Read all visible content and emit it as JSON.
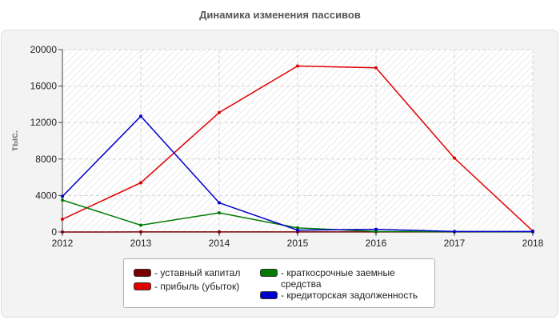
{
  "chart_data": {
    "type": "line",
    "title": "Динамика изменения пассивов",
    "ylabel": "тыс.",
    "xlabel": "",
    "x": [
      "2012",
      "2013",
      "2014",
      "2015",
      "2016",
      "2017",
      "2018"
    ],
    "ylim": [
      0,
      20000
    ],
    "yticks": [
      "0",
      "4000",
      "8000",
      "12000",
      "16000",
      "20000"
    ],
    "grid": true,
    "legend_position": "bottom",
    "series": [
      {
        "name": "- уставный капитал",
        "color": "#7a0000",
        "values": [
          0,
          10,
          10,
          10,
          10,
          10,
          10
        ]
      },
      {
        "name": "- прибыль (убыток)",
        "color": "#e00000",
        "values": [
          1400,
          5400,
          13100,
          18200,
          18000,
          8100,
          100
        ]
      },
      {
        "name": "- краткосрочные заемные средства",
        "color": "#007a00",
        "values": [
          3500,
          750,
          2100,
          450,
          60,
          30,
          20
        ]
      },
      {
        "name": "- кредиторская задолженность",
        "color": "#0000cc",
        "values": [
          3900,
          12700,
          3200,
          200,
          300,
          50,
          50
        ]
      }
    ]
  }
}
